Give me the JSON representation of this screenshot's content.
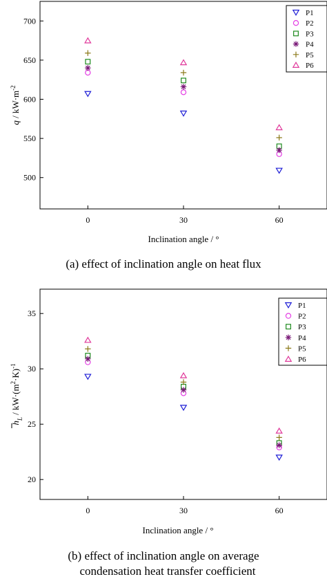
{
  "colors": {
    "P1": "#1f1fd6",
    "P2": "#e43ce4",
    "P3": "#1e8a1e",
    "P4": "#7a1a78",
    "P5": "#8c7a1a",
    "P6": "#e0389a"
  },
  "markers": {
    "P1": "triangle-down",
    "P2": "circle",
    "P3": "square",
    "P4": "asterisk",
    "P5": "plus",
    "P6": "triangle-up"
  },
  "chart_data": [
    {
      "type": "scatter",
      "caption": "(a) effect of inclination angle on heat flux",
      "xlabel": "Inclination angle / °",
      "ylabel_main": "q",
      "ylabel_unit": " / kW·m",
      "ylabel_sup": "-2",
      "x": [
        0,
        30,
        60
      ],
      "xlim": [
        -15,
        75
      ],
      "ylim": [
        460,
        725
      ],
      "yticks": [
        500,
        550,
        600,
        650,
        700
      ],
      "legend_position": "top-right",
      "series": [
        {
          "name": "P1",
          "values": [
            607,
            582,
            509
          ]
        },
        {
          "name": "P2",
          "values": [
            634,
            609,
            530
          ]
        },
        {
          "name": "P3",
          "values": [
            648,
            624,
            540
          ]
        },
        {
          "name": "P4",
          "values": [
            640,
            616,
            535
          ]
        },
        {
          "name": "P5",
          "values": [
            659,
            634,
            551
          ]
        },
        {
          "name": "P6",
          "values": [
            675,
            647,
            564
          ]
        }
      ]
    },
    {
      "type": "scatter",
      "caption_line1": "(b) effect of inclination angle on average",
      "caption_line2": "condensation heat transfer coefficient",
      "xlabel": "Inclination angle / °",
      "ylabel_main": "h",
      "ylabel_sub": "L",
      "ylabel_unit": " / kW·(m",
      "ylabel_sup1": "2",
      "ylabel_mid": "·K)",
      "ylabel_sup2": "-1",
      "x": [
        0,
        30,
        60
      ],
      "xlim": [
        -15,
        75
      ],
      "ylim": [
        18.2,
        37.2
      ],
      "yticks": [
        20,
        25,
        30,
        35
      ],
      "legend_position": "top-right",
      "series": [
        {
          "name": "P1",
          "values": [
            29.3,
            26.5,
            22.0
          ]
        },
        {
          "name": "P2",
          "values": [
            30.6,
            27.8,
            22.9
          ]
        },
        {
          "name": "P3",
          "values": [
            31.2,
            28.4,
            23.3
          ]
        },
        {
          "name": "P4",
          "values": [
            30.9,
            28.1,
            23.1
          ]
        },
        {
          "name": "P5",
          "values": [
            31.8,
            28.8,
            23.8
          ]
        },
        {
          "name": "P6",
          "values": [
            32.6,
            29.4,
            24.4
          ]
        }
      ]
    }
  ]
}
